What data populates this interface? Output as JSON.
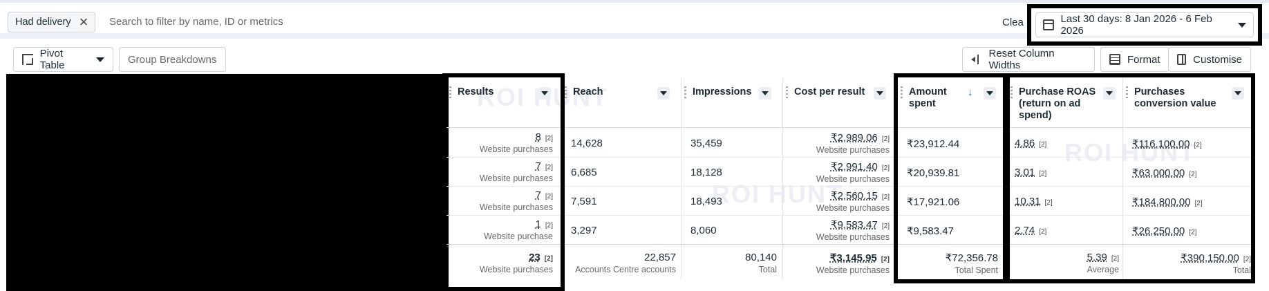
{
  "filter": {
    "chip_label": "Had delivery",
    "search_placeholder": "Search to filter by name, ID or metrics",
    "clear_label": "Clea",
    "date_range": "Last 30 days: 8 Jan 2026 - 6 Feb 2026"
  },
  "toolbar": {
    "pivot_label": "Pivot Table",
    "group_label": "Group Breakdowns",
    "reset_label": "Reset Column Widths",
    "format_label": "Format",
    "customise_label": "Customise"
  },
  "columns": {
    "results": "Results",
    "reach": "Reach",
    "impressions": "Impressions",
    "cpr": "Cost per result",
    "spent": "Amount spent",
    "roas": "Purchase ROAS (return on ad spend)",
    "pcv": "Purchases conversion value"
  },
  "rows": [
    {
      "results": "8",
      "results_sub": "Website purchases",
      "reach": "14,628",
      "impressions": "35,459",
      "cpr": "₹2,989.06",
      "cpr_sub": "Website purchases",
      "spent": "₹23,912.44",
      "roas": "4.86",
      "pcv": "₹116,100.00"
    },
    {
      "results": "7",
      "results_sub": "Website purchases",
      "reach": "6,685",
      "impressions": "18,128",
      "cpr": "₹2,991.40",
      "cpr_sub": "Website purchases",
      "spent": "₹20,939.81",
      "roas": "3.01",
      "pcv": "₹63,000.00"
    },
    {
      "results": "7",
      "results_sub": "Website purchases",
      "reach": "7,591",
      "impressions": "18,493",
      "cpr": "₹2,560.15",
      "cpr_sub": "Website purchases",
      "spent": "₹17,921.06",
      "roas": "10.31",
      "pcv": "₹184,800.00"
    },
    {
      "results": "1",
      "results_sub": "Website purchase",
      "reach": "3,297",
      "impressions": "8,060",
      "cpr": "₹9,583.47",
      "cpr_sub": "Website purchases",
      "spent": "₹9,583.47",
      "roas": "2.74",
      "pcv": "₹26,250.00"
    }
  ],
  "footnote_marker": "[2]",
  "totals": {
    "results": "23",
    "results_sub": "Website purchases",
    "reach": "22,857",
    "reach_sub": "Accounts Centre accounts",
    "impressions": "80,140",
    "impressions_sub": "Total",
    "cpr": "₹3,145.95",
    "cpr_sub": "Website purchases",
    "spent": "₹72,356.78",
    "spent_sub": "Total Spent",
    "roas": "5.39",
    "roas_sub": "Average",
    "pcv": "₹390,150.00",
    "pcv_sub": "Total"
  },
  "watermark": "ROI HUNT"
}
